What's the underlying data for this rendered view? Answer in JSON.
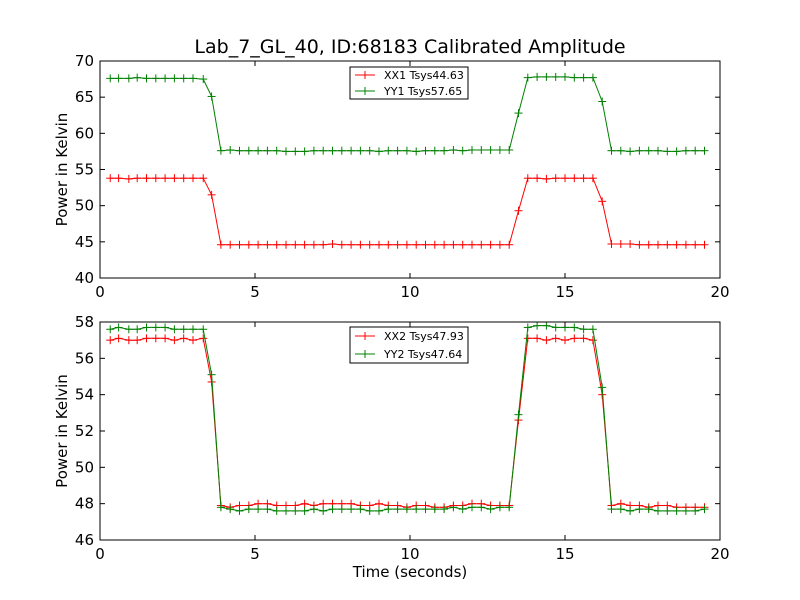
{
  "figure": {
    "title": "Lab_7_GL_40, ID:68183 Calibrated Amplitude",
    "xlabel": "Time (seconds)"
  },
  "chart_data": [
    {
      "type": "line",
      "ylabel": "Power in Kelvin",
      "xlim": [
        0,
        20
      ],
      "ylim": [
        40,
        70
      ],
      "xticks": [
        "0",
        "5",
        "10",
        "15",
        "20"
      ],
      "yticks": [
        "40",
        "45",
        "50",
        "55",
        "60",
        "65",
        "70"
      ],
      "legend_position": "top-center",
      "grid": false,
      "x": [
        0.33,
        0.6,
        0.93,
        1.2,
        1.5,
        1.8,
        2.1,
        2.4,
        2.7,
        3.0,
        3.33,
        3.6,
        3.9,
        4.2,
        4.5,
        4.8,
        5.1,
        5.4,
        5.7,
        6.0,
        6.3,
        6.6,
        6.9,
        7.2,
        7.5,
        7.8,
        8.1,
        8.4,
        8.7,
        9.0,
        9.3,
        9.6,
        9.9,
        10.2,
        10.5,
        10.8,
        11.1,
        11.4,
        11.7,
        12.0,
        12.3,
        12.6,
        12.9,
        13.2,
        13.5,
        13.8,
        14.1,
        14.4,
        14.7,
        15.0,
        15.3,
        15.6,
        15.9,
        16.2,
        16.5,
        16.8,
        17.1,
        17.4,
        17.7,
        18.0,
        18.3,
        18.6,
        18.9,
        19.2,
        19.5
      ],
      "series": [
        {
          "name": "XX1 Tsys44.63",
          "color": "#ff0000",
          "values": [
            53.8,
            53.8,
            53.7,
            53.8,
            53.8,
            53.8,
            53.8,
            53.8,
            53.8,
            53.8,
            53.8,
            51.5,
            44.6,
            44.6,
            44.6,
            44.6,
            44.6,
            44.6,
            44.6,
            44.6,
            44.6,
            44.6,
            44.6,
            44.6,
            44.7,
            44.6,
            44.6,
            44.6,
            44.6,
            44.6,
            44.6,
            44.6,
            44.6,
            44.6,
            44.6,
            44.6,
            44.6,
            44.6,
            44.6,
            44.6,
            44.6,
            44.6,
            44.6,
            44.6,
            49.3,
            53.8,
            53.8,
            53.7,
            53.8,
            53.8,
            53.8,
            53.8,
            53.8,
            50.6,
            44.7,
            44.7,
            44.7,
            44.6,
            44.6,
            44.6,
            44.6,
            44.6,
            44.6,
            44.6,
            44.6
          ]
        },
        {
          "name": "YY1 Tsys57.65",
          "color": "#008000",
          "values": [
            67.6,
            67.6,
            67.6,
            67.7,
            67.6,
            67.6,
            67.6,
            67.6,
            67.6,
            67.6,
            67.5,
            65.1,
            57.6,
            57.7,
            57.6,
            57.6,
            57.6,
            57.6,
            57.6,
            57.5,
            57.5,
            57.5,
            57.6,
            57.6,
            57.6,
            57.6,
            57.6,
            57.6,
            57.6,
            57.5,
            57.6,
            57.6,
            57.6,
            57.5,
            57.6,
            57.6,
            57.6,
            57.7,
            57.6,
            57.7,
            57.7,
            57.7,
            57.7,
            57.7,
            62.8,
            67.7,
            67.8,
            67.8,
            67.8,
            67.8,
            67.7,
            67.7,
            67.7,
            64.4,
            57.6,
            57.6,
            57.5,
            57.6,
            57.6,
            57.6,
            57.5,
            57.5,
            57.6,
            57.6,
            57.6
          ]
        }
      ]
    },
    {
      "type": "line",
      "ylabel": "Power in Kelvin",
      "xlim": [
        0,
        20
      ],
      "ylim": [
        46,
        58
      ],
      "xticks": [
        "0",
        "5",
        "10",
        "15",
        "20"
      ],
      "yticks": [
        "46",
        "48",
        "50",
        "52",
        "54",
        "56",
        "58"
      ],
      "legend_position": "top-center",
      "grid": false,
      "x": [
        0.33,
        0.6,
        0.93,
        1.2,
        1.5,
        1.8,
        2.1,
        2.4,
        2.7,
        3.0,
        3.33,
        3.6,
        3.9,
        4.2,
        4.5,
        4.8,
        5.1,
        5.4,
        5.7,
        6.0,
        6.3,
        6.6,
        6.9,
        7.2,
        7.5,
        7.8,
        8.1,
        8.4,
        8.7,
        9.0,
        9.3,
        9.6,
        9.9,
        10.2,
        10.5,
        10.8,
        11.1,
        11.4,
        11.7,
        12.0,
        12.3,
        12.6,
        12.9,
        13.2,
        13.5,
        13.8,
        14.1,
        14.4,
        14.7,
        15.0,
        15.3,
        15.6,
        15.9,
        16.2,
        16.5,
        16.8,
        17.1,
        17.4,
        17.7,
        18.0,
        18.3,
        18.6,
        18.9,
        19.2,
        19.5
      ],
      "series": [
        {
          "name": "XX2 Tsys47.93",
          "color": "#ff0000",
          "values": [
            57.0,
            57.1,
            57.0,
            57.0,
            57.1,
            57.1,
            57.1,
            57.0,
            57.1,
            57.0,
            57.1,
            54.7,
            47.9,
            47.8,
            47.9,
            47.9,
            48.0,
            48.0,
            47.9,
            47.9,
            47.9,
            48.0,
            47.9,
            48.0,
            48.0,
            48.0,
            48.0,
            47.9,
            47.9,
            48.0,
            47.9,
            47.9,
            47.8,
            47.9,
            47.9,
            47.8,
            47.8,
            47.9,
            47.9,
            48.0,
            48.0,
            47.9,
            47.9,
            47.9,
            52.6,
            57.1,
            57.1,
            57.0,
            57.1,
            57.0,
            57.1,
            57.1,
            57.0,
            54.0,
            47.9,
            48.0,
            47.9,
            47.9,
            47.8,
            47.9,
            47.9,
            47.8,
            47.8,
            47.8,
            47.8
          ]
        },
        {
          "name": "YY2 Tsys47.64",
          "color": "#008000",
          "values": [
            57.6,
            57.7,
            57.6,
            57.6,
            57.7,
            57.7,
            57.7,
            57.6,
            57.6,
            57.6,
            57.6,
            55.1,
            47.8,
            47.7,
            47.6,
            47.7,
            47.7,
            47.7,
            47.6,
            47.6,
            47.6,
            47.6,
            47.7,
            47.6,
            47.7,
            47.7,
            47.7,
            47.7,
            47.6,
            47.6,
            47.7,
            47.7,
            47.7,
            47.7,
            47.7,
            47.7,
            47.7,
            47.8,
            47.7,
            47.8,
            47.8,
            47.7,
            47.8,
            47.8,
            52.9,
            57.7,
            57.8,
            57.8,
            57.7,
            57.7,
            57.7,
            57.6,
            57.6,
            54.4,
            47.7,
            47.7,
            47.6,
            47.7,
            47.7,
            47.6,
            47.6,
            47.6,
            47.6,
            47.6,
            47.7
          ]
        }
      ]
    }
  ]
}
